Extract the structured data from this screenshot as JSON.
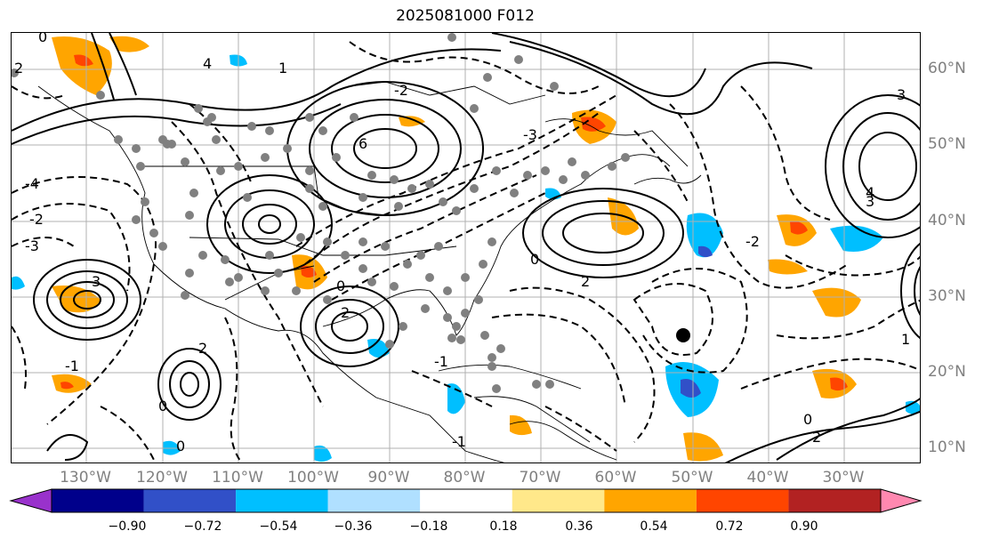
{
  "title": "2025081000 F012",
  "map": {
    "lon_labels": [
      "130°W",
      "120°W",
      "110°W",
      "100°W",
      "90°W",
      "80°W",
      "70°W",
      "60°W",
      "50°W",
      "40°W",
      "30°W"
    ],
    "lat_labels": [
      "60°N",
      "50°N",
      "40°N",
      "30°N",
      "20°N",
      "10°N"
    ],
    "contour_labels": [
      "0",
      "2",
      "4",
      "6",
      "3",
      "-2",
      "-4",
      "-3",
      "1",
      "-1",
      "2",
      "0",
      "-2",
      "3",
      "0",
      "2",
      "-2",
      "0",
      "-1",
      "2",
      "4",
      "3",
      "1",
      "-3",
      "0",
      "2",
      "-1",
      "0"
    ],
    "marked_point": "black-dot"
  },
  "colorbar": {
    "tick_labels": [
      "−0.90",
      "−0.72",
      "−0.54",
      "−0.36",
      "−0.18",
      "0.18",
      "0.36",
      "0.54",
      "0.72",
      "0.90"
    ],
    "colors": [
      "#9932cc",
      "#00008b",
      "#3150c8",
      "#00bfff",
      "#b0e0ff",
      "#ffffff",
      "#ffe88a",
      "#ffa500",
      "#ff4500",
      "#b22222",
      "#ff88b0"
    ]
  }
}
